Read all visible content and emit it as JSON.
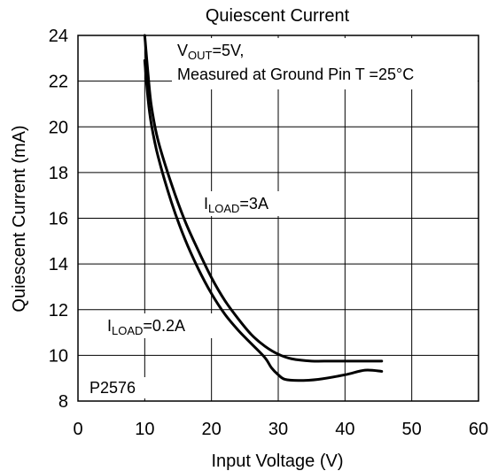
{
  "chart_data": {
    "type": "line",
    "title": "Quiescent Current",
    "xlabel": "Input Voltage (V)",
    "ylabel": "Quiescent Current (mA)",
    "xlim": [
      0,
      60
    ],
    "ylim": [
      8,
      24
    ],
    "x_ticks": [
      "0",
      "10",
      "20",
      "30",
      "40",
      "50",
      "60"
    ],
    "y_ticks": [
      "8",
      "10",
      "12",
      "14",
      "16",
      "18",
      "20",
      "22",
      "24"
    ],
    "grid": true,
    "annotations": {
      "condition_v": "V",
      "condition_v_sub": "OUT",
      "condition_v_rest": "=5V,",
      "condition_line2": "Measured at Ground Pin T =25°C",
      "label_3a_i": "I",
      "label_3a_sub": "LOAD",
      "label_3a_rest": "=3A",
      "label_02a_i": "I",
      "label_02a_sub": "LOAD",
      "label_02a_rest": "=0.2A",
      "part_number": "P2576"
    },
    "series": [
      {
        "label_ref": "3A",
        "color": "#000000",
        "x": [
          10,
          10.5,
          11,
          12,
          14,
          16,
          18,
          20,
          22,
          24,
          26,
          28,
          30,
          32,
          35,
          38,
          42,
          45.5
        ],
        "y": [
          24,
          22.3,
          20.9,
          19.4,
          17.5,
          15.9,
          14.6,
          13.4,
          12.4,
          11.6,
          10.9,
          10.4,
          10.05,
          9.85,
          9.75,
          9.75,
          9.75,
          9.75
        ]
      },
      {
        "label_ref": "0.2A",
        "color": "#000000",
        "x": [
          10,
          10.5,
          11,
          12,
          14,
          16,
          18,
          20,
          22,
          24,
          26,
          28,
          29,
          30,
          31,
          33,
          36,
          40,
          43,
          45.5
        ],
        "y": [
          22.9,
          21.2,
          20.1,
          18.7,
          16.7,
          15.1,
          13.8,
          12.7,
          11.8,
          11.1,
          10.5,
          9.9,
          9.45,
          9.15,
          8.95,
          8.9,
          8.95,
          9.15,
          9.35,
          9.3
        ]
      }
    ]
  }
}
